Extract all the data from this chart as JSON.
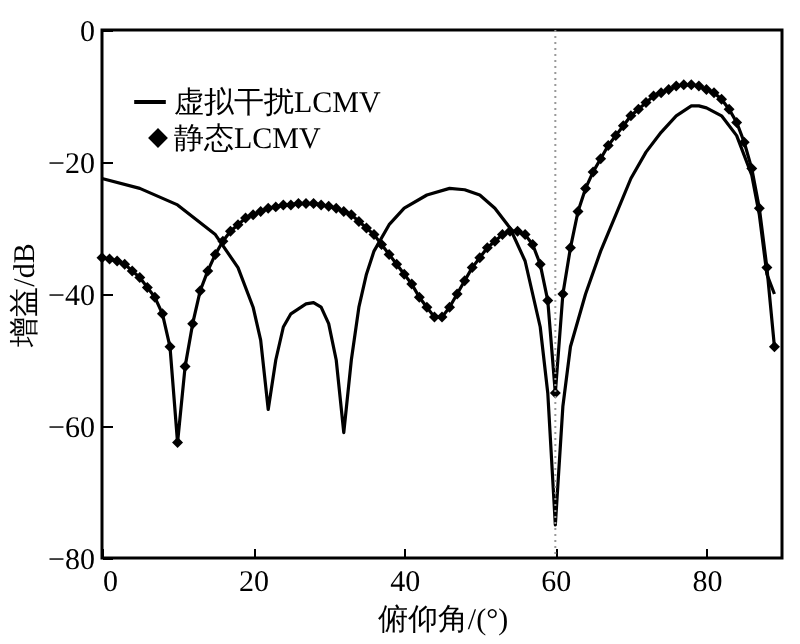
{
  "chart_data": {
    "type": "line",
    "xlabel": "俯仰角/(°)",
    "ylabel": "增益/dB",
    "xlim": [
      0,
      90
    ],
    "ylim": [
      -80,
      0
    ],
    "xticks": [
      0,
      20,
      40,
      60,
      80
    ],
    "yticks": [
      -80,
      -60,
      -40,
      -20,
      0
    ],
    "grid": false,
    "legend": "top left",
    "line_style": "solid",
    "ref_lines": [
      {
        "axis": "x",
        "value": 60,
        "color": "#999999",
        "line_style": "dotted"
      }
    ],
    "series": [
      {
        "name": "虚拟干扰LCMV",
        "color": "#000000",
        "marker": "none",
        "x": [
          0,
          5,
          10,
          15,
          18,
          20,
          21,
          22,
          23,
          24,
          25,
          27,
          28,
          29,
          30,
          31,
          32,
          33,
          34,
          35,
          36,
          38,
          40,
          43,
          46,
          48,
          50,
          52,
          54,
          56,
          58,
          59,
          60,
          61,
          62,
          64,
          66,
          68,
          70,
          72,
          74,
          76,
          78,
          79,
          80,
          82,
          84,
          86,
          87,
          88,
          89
        ],
        "values": [
          -22.5,
          -24,
          -26.5,
          -31,
          -36,
          -42,
          -47,
          -57.5,
          -50,
          -45,
          -43,
          -41.5,
          -41.3,
          -42,
          -44.5,
          -50,
          -61,
          -50,
          -42,
          -37,
          -33.5,
          -29.5,
          -27,
          -25,
          -24,
          -24.2,
          -25,
          -27,
          -30,
          -35,
          -45,
          -55,
          -75,
          -57,
          -48,
          -40,
          -33.5,
          -28,
          -22.5,
          -18.5,
          -15.5,
          -13,
          -11.5,
          -11.5,
          -11.8,
          -13,
          -16,
          -22,
          -28,
          -37,
          -40
        ]
      },
      {
        "name": "静态LCMV",
        "color": "#000000",
        "marker": "diamond",
        "x": [
          0,
          1,
          2,
          3,
          4,
          5,
          6,
          7,
          8,
          9,
          10,
          11,
          12,
          13,
          14,
          15,
          16,
          17,
          18,
          19,
          20,
          21,
          22,
          23,
          24,
          25,
          26,
          27,
          28,
          29,
          30,
          31,
          32,
          33,
          34,
          35,
          36,
          37,
          38,
          39,
          40,
          41,
          42,
          43,
          44,
          45,
          46,
          47,
          48,
          49,
          50,
          51,
          52,
          53,
          54,
          55,
          56,
          57,
          58,
          59,
          60,
          61,
          62,
          63,
          64,
          65,
          66,
          67,
          68,
          69,
          70,
          71,
          72,
          73,
          74,
          75,
          76,
          77,
          78,
          79,
          80,
          81,
          82,
          83,
          84,
          85,
          86,
          87,
          88,
          89
        ],
        "values": [
          -34.5,
          -34.7,
          -35,
          -35.5,
          -36.5,
          -37.5,
          -39,
          -40.5,
          -43,
          -48,
          -62.5,
          -51,
          -44.5,
          -39.5,
          -36.5,
          -34,
          -32,
          -30.5,
          -29.5,
          -28.5,
          -28,
          -27.5,
          -27,
          -26.8,
          -26.5,
          -26.5,
          -26.3,
          -26.3,
          -26.3,
          -26.5,
          -26.7,
          -27,
          -27.5,
          -28,
          -29,
          -30,
          -31,
          -32.5,
          -34,
          -35.5,
          -37,
          -38.5,
          -40.5,
          -42,
          -43.5,
          -43.5,
          -42,
          -40,
          -38,
          -36,
          -34.5,
          -33,
          -32,
          -31,
          -30.5,
          -30.5,
          -31,
          -32.5,
          -35.5,
          -41,
          -55,
          -40,
          -33,
          -27.5,
          -24,
          -21.5,
          -19.5,
          -17.5,
          -16,
          -14.5,
          -13,
          -12,
          -11,
          -10,
          -9.5,
          -9,
          -8.5,
          -8.3,
          -8.3,
          -8.5,
          -9,
          -9.5,
          -10.5,
          -12,
          -14,
          -17,
          -21,
          -27,
          -36,
          -48
        ]
      }
    ]
  }
}
